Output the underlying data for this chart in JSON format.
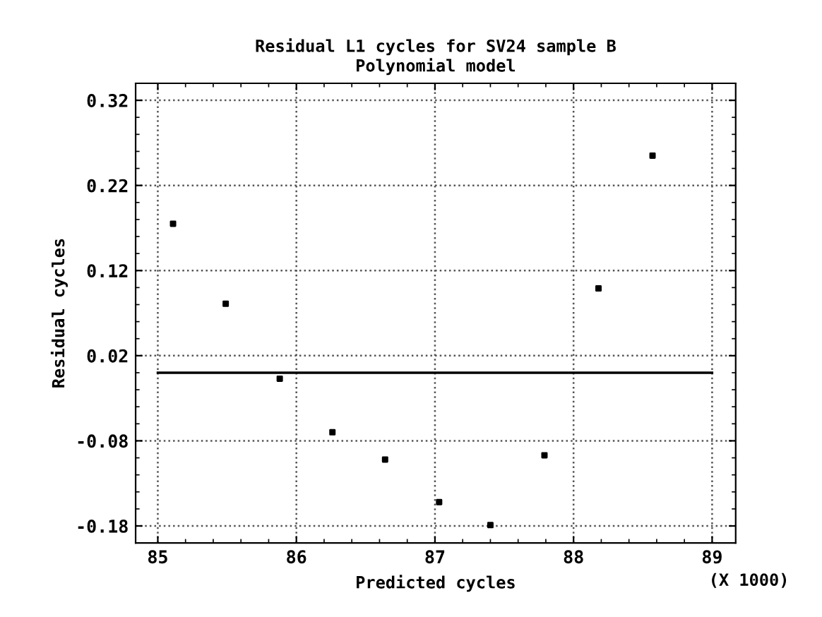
{
  "chart_data": {
    "type": "scatter",
    "title": "Residual L1 cycles for SV24 sample B\nPolynomial model",
    "xlabel": "Predicted cycles",
    "ylabel": "Residual cycles",
    "annotations": [
      "(X 1000)"
    ],
    "x": [
      85.11,
      85.49,
      85.88,
      86.26,
      86.64,
      87.03,
      87.4,
      87.79,
      88.18,
      88.57
    ],
    "series": [
      {
        "color": "#000000",
        "values": [
          0.175,
          0.081,
          -0.007,
          -0.07,
          -0.102,
          -0.152,
          -0.179,
          -0.097,
          0.099,
          0.255
        ]
      }
    ],
    "ref_lines": [
      {
        "axis": "y",
        "value": 0,
        "color": "#000000",
        "line_style": "solid"
      }
    ],
    "xlim": [
      84.84,
      89.17
    ],
    "xticks": [
      85,
      86,
      87,
      88,
      89
    ],
    "ylim": [
      -0.2,
      0.34
    ],
    "yticks": [
      0.32,
      0.22,
      0.12,
      0.02,
      -0.08,
      -0.18
    ],
    "grid": true,
    "marker": "square"
  }
}
